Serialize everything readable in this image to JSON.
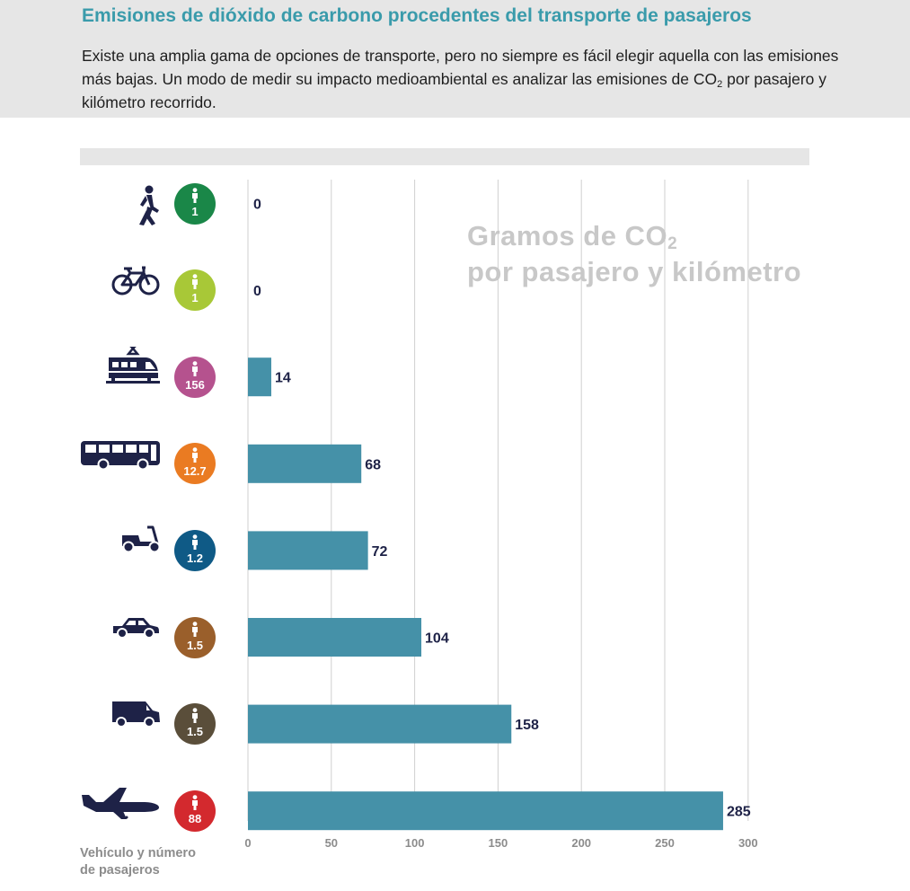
{
  "header": {
    "title": "Emisiones de dióxido de carbono procedentes del transporte de pasajeros",
    "intro_before_sub": "Existe una amplia gama de opciones de transporte, pero no siempre es fácil elegir aquella con las emisiones más bajas. Un modo de medir su impacto medioambiental es analizar las emisiones de CO",
    "intro_sub": "2",
    "intro_after_sub": " por pasajero y kilómetro recorrido."
  },
  "ytitle": {
    "line1": "Gramos de CO",
    "line1_sub": "2",
    "line2": "por pasajero y kilómetro"
  },
  "xlabel": {
    "line1": "Vehículo y número",
    "line2": "de pasajeros"
  },
  "chart_data": {
    "type": "bar",
    "orientation": "horizontal",
    "categories": [
      "walking-icon",
      "bicycle-icon",
      "train-icon",
      "bus-icon",
      "scooter-icon",
      "car-icon",
      "van-icon",
      "airplane-icon"
    ],
    "passengers": [
      "1",
      "1",
      "156",
      "12.7",
      "1.2",
      "1.5",
      "1.5",
      "88"
    ],
    "badge_colors": [
      "#1a8748",
      "#a8c837",
      "#b5528e",
      "#ea7b22",
      "#0f5a86",
      "#9a5f2b",
      "#5a4e3a",
      "#d3292e"
    ],
    "values": [
      0,
      0,
      14,
      68,
      72,
      104,
      158,
      285
    ],
    "xticks": [
      0,
      50,
      100,
      150,
      200,
      250,
      300
    ],
    "xlim": [
      0,
      300
    ],
    "bar_color": "#4591a8",
    "grid": true
  }
}
